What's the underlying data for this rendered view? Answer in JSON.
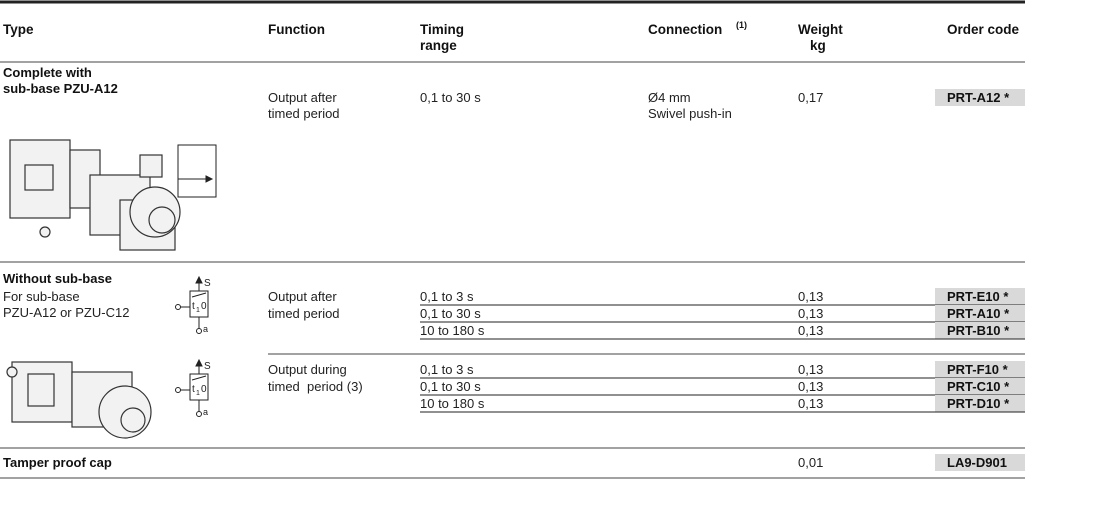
{
  "header": {
    "columns": [
      {
        "lines": [
          "Type"
        ]
      },
      {
        "lines": [
          "Function"
        ]
      },
      {
        "lines": [
          "Timing",
          "range"
        ]
      },
      {
        "lines": [
          "Connection"
        ],
        "note": "(1)"
      },
      {
        "lines": [
          "Weight",
          "kg"
        ]
      },
      {
        "lines": [
          "Order code"
        ]
      }
    ]
  },
  "sections": [
    {
      "title": [
        "Complete with",
        "sub-base PZU-A12"
      ],
      "groups": [
        {
          "function": [
            "Output after",
            "timed period"
          ],
          "rows": [
            {
              "timing": "0,1 to 30 s",
              "connection": [
                "Ø4 mm",
                "Swivel push-in"
              ],
              "weight": "0,17",
              "code": "PRT-A12 *"
            }
          ]
        }
      ]
    },
    {
      "title": [
        "Without sub-base"
      ],
      "subtitle": [
        "For sub-base",
        "PZU-A12 or PZU-C12"
      ],
      "symbol_labels": [
        "S",
        "t",
        "1",
        "0",
        "a"
      ],
      "groups": [
        {
          "function": [
            "Output after",
            "timed period"
          ],
          "rows": [
            {
              "timing": "0,1 to 3 s",
              "weight": "0,13",
              "code": "PRT-E10 *"
            },
            {
              "timing": "0,1 to 30 s",
              "weight": "0,13",
              "code": "PRT-A10 *"
            },
            {
              "timing": "10 to 180 s",
              "weight": "0,13",
              "code": "PRT-B10 *"
            }
          ]
        },
        {
          "function": [
            "Output during",
            "timed  period (3)"
          ],
          "rows": [
            {
              "timing": "0,1 to 3 s",
              "weight": "0,13",
              "code": "PRT-F10 *"
            },
            {
              "timing": "0,1 to 30 s",
              "weight": "0,13",
              "code": "PRT-C10 *"
            },
            {
              "timing": "10 to 180 s",
              "weight": "0,13",
              "code": "PRT-D10 *"
            }
          ]
        }
      ]
    },
    {
      "title": [
        "Tamper proof cap"
      ],
      "groups": [
        {
          "rows": [
            {
              "weight": "0,01",
              "code": "LA9-D901"
            }
          ]
        }
      ]
    }
  ]
}
